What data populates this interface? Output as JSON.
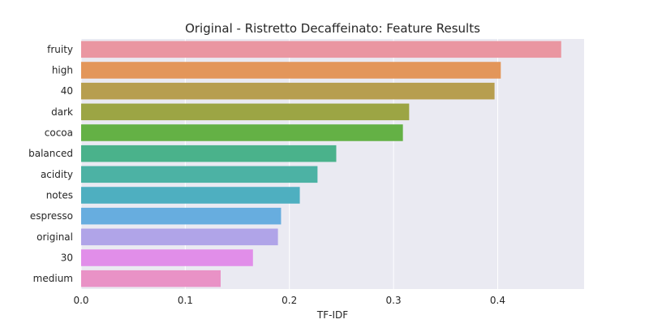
{
  "chart_data": {
    "type": "bar",
    "orientation": "horizontal",
    "title": "Original - Ristretto Decaffeinato: Feature Results",
    "xlabel": "TF-IDF",
    "ylabel": "",
    "categories": [
      "fruity",
      "high",
      "40",
      "dark",
      "cocoa",
      "balanced",
      "acidity",
      "notes",
      "espresso",
      "original",
      "30",
      "medium"
    ],
    "values": [
      0.461,
      0.403,
      0.397,
      0.315,
      0.309,
      0.245,
      0.227,
      0.21,
      0.192,
      0.189,
      0.165,
      0.134
    ],
    "xlim": [
      0.0,
      0.483
    ],
    "xticks": [
      "0.0",
      "0.1",
      "0.2",
      "0.3",
      "0.4"
    ],
    "grid": "vertical",
    "background": "#eaeaf2",
    "colors": [
      "#ea96a1",
      "#e3965a",
      "#b79e4f",
      "#9ca544",
      "#64b145",
      "#4ab28b",
      "#4cb2a4",
      "#4eafc0",
      "#67addf",
      "#b0a4e8",
      "#e18ee9",
      "#e992c6"
    ]
  }
}
